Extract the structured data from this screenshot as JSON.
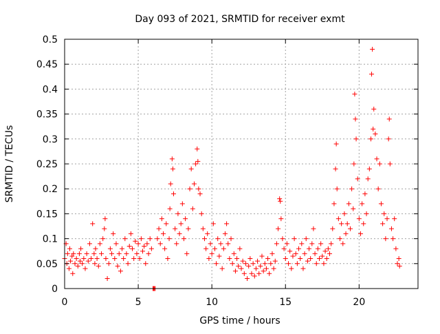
{
  "chart_data": {
    "type": "scatter",
    "title": "Day 093 of 2021, SRMTID for receiver exmt",
    "xlabel": "GPS time / hours",
    "ylabel": "SRMTID / TECUs",
    "xlim": [
      0,
      24
    ],
    "ylim": [
      0,
      0.5
    ],
    "x_ticks": [
      0,
      5,
      10,
      15,
      20
    ],
    "y_ticks": [
      0,
      0.05,
      0.1,
      0.15,
      0.2,
      0.25,
      0.3,
      0.35,
      0.4,
      0.45,
      0.5
    ],
    "x_tick_labels": [
      "0",
      "5",
      "10",
      "15",
      "20"
    ],
    "y_tick_labels": [
      "0",
      "0.05",
      "0.1",
      "0.15",
      "0.2",
      "0.25",
      "0.3",
      "0.35",
      "0.4",
      "0.45",
      "0.5"
    ],
    "grid": true,
    "marker": "+",
    "colors": {
      "series": "#ff0000",
      "axis": "#000000",
      "grid": "#a0a0a0"
    },
    "series": [
      {
        "name": "SRMTID",
        "points": [
          [
            0.0,
            0.06
          ],
          [
            0.1,
            0.09
          ],
          [
            0.15,
            0.05
          ],
          [
            0.2,
            0.07
          ],
          [
            0.3,
            0.04
          ],
          [
            0.35,
            0.08
          ],
          [
            0.4,
            0.055
          ],
          [
            0.5,
            0.065
          ],
          [
            0.55,
            0.03
          ],
          [
            0.6,
            0.07
          ],
          [
            0.7,
            0.05
          ],
          [
            0.8,
            0.06
          ],
          [
            0.9,
            0.045
          ],
          [
            1.0,
            0.07
          ],
          [
            1.05,
            0.055
          ],
          [
            1.1,
            0.08
          ],
          [
            1.2,
            0.05
          ],
          [
            1.3,
            0.06
          ],
          [
            1.4,
            0.04
          ],
          [
            1.5,
            0.07
          ],
          [
            1.6,
            0.055
          ],
          [
            1.7,
            0.09
          ],
          [
            1.8,
            0.06
          ],
          [
            1.9,
            0.13
          ],
          [
            2.0,
            0.07
          ],
          [
            2.05,
            0.05
          ],
          [
            2.1,
            0.08
          ],
          [
            2.2,
            0.06
          ],
          [
            2.3,
            0.045
          ],
          [
            2.4,
            0.09
          ],
          [
            2.5,
            0.07
          ],
          [
            2.6,
            0.1
          ],
          [
            2.7,
            0.12
          ],
          [
            2.75,
            0.14
          ],
          [
            2.8,
            0.06
          ],
          [
            2.9,
            0.02
          ],
          [
            3.0,
            0.05
          ],
          [
            3.1,
            0.08
          ],
          [
            3.2,
            0.07
          ],
          [
            3.3,
            0.11
          ],
          [
            3.4,
            0.06
          ],
          [
            3.5,
            0.09
          ],
          [
            3.6,
            0.045
          ],
          [
            3.7,
            0.07
          ],
          [
            3.8,
            0.035
          ],
          [
            3.9,
            0.08
          ],
          [
            4.0,
            0.06
          ],
          [
            4.1,
            0.1
          ],
          [
            4.2,
            0.07
          ],
          [
            4.3,
            0.05
          ],
          [
            4.4,
            0.085
          ],
          [
            4.5,
            0.11
          ],
          [
            4.6,
            0.08
          ],
          [
            4.7,
            0.06
          ],
          [
            4.8,
            0.095
          ],
          [
            4.9,
            0.07
          ],
          [
            5.0,
            0.09
          ],
          [
            5.1,
            0.06
          ],
          [
            5.2,
            0.1
          ],
          [
            5.3,
            0.075
          ],
          [
            5.4,
            0.085
          ],
          [
            5.5,
            0.05
          ],
          [
            5.6,
            0.09
          ],
          [
            5.7,
            0.07
          ],
          [
            5.8,
            0.1
          ],
          [
            5.9,
            0.08
          ],
          [
            6.0,
            0.0
          ],
          [
            6.05,
            0.0
          ],
          [
            6.1,
            0.0
          ],
          [
            6.15,
            0.0
          ],
          [
            6.3,
            0.1
          ],
          [
            6.4,
            0.12
          ],
          [
            6.5,
            0.09
          ],
          [
            6.6,
            0.14
          ],
          [
            6.7,
            0.11
          ],
          [
            6.8,
            0.08
          ],
          [
            6.9,
            0.13
          ],
          [
            7.0,
            0.06
          ],
          [
            7.1,
            0.1
          ],
          [
            7.15,
            0.16
          ],
          [
            7.2,
            0.21
          ],
          [
            7.3,
            0.26
          ],
          [
            7.35,
            0.24
          ],
          [
            7.4,
            0.19
          ],
          [
            7.5,
            0.12
          ],
          [
            7.6,
            0.09
          ],
          [
            7.7,
            0.15
          ],
          [
            7.8,
            0.11
          ],
          [
            7.9,
            0.13
          ],
          [
            8.0,
            0.17
          ],
          [
            8.1,
            0.1
          ],
          [
            8.2,
            0.14
          ],
          [
            8.3,
            0.07
          ],
          [
            8.4,
            0.12
          ],
          [
            8.5,
            0.2
          ],
          [
            8.6,
            0.24
          ],
          [
            8.7,
            0.16
          ],
          [
            8.8,
            0.21
          ],
          [
            8.9,
            0.25
          ],
          [
            9.0,
            0.28
          ],
          [
            9.05,
            0.255
          ],
          [
            9.1,
            0.2
          ],
          [
            9.2,
            0.19
          ],
          [
            9.3,
            0.15
          ],
          [
            9.4,
            0.12
          ],
          [
            9.5,
            0.1
          ],
          [
            9.6,
            0.08
          ],
          [
            9.7,
            0.11
          ],
          [
            9.8,
            0.06
          ],
          [
            9.9,
            0.09
          ],
          [
            10.0,
            0.07
          ],
          [
            10.1,
            0.13
          ],
          [
            10.2,
            0.08
          ],
          [
            10.3,
            0.05
          ],
          [
            10.4,
            0.1
          ],
          [
            10.5,
            0.065
          ],
          [
            10.6,
            0.09
          ],
          [
            10.7,
            0.04
          ],
          [
            10.8,
            0.08
          ],
          [
            10.9,
            0.11
          ],
          [
            11.0,
            0.13
          ],
          [
            11.1,
            0.09
          ],
          [
            11.2,
            0.06
          ],
          [
            11.3,
            0.1
          ],
          [
            11.4,
            0.05
          ],
          [
            11.5,
            0.07
          ],
          [
            11.6,
            0.035
          ],
          [
            11.7,
            0.06
          ],
          [
            11.8,
            0.045
          ],
          [
            11.9,
            0.08
          ],
          [
            12.0,
            0.04
          ],
          [
            12.1,
            0.055
          ],
          [
            12.2,
            0.03
          ],
          [
            12.3,
            0.05
          ],
          [
            12.4,
            0.02
          ],
          [
            12.5,
            0.045
          ],
          [
            12.6,
            0.06
          ],
          [
            12.7,
            0.03
          ],
          [
            12.8,
            0.05
          ],
          [
            12.9,
            0.025
          ],
          [
            13.0,
            0.04
          ],
          [
            13.1,
            0.055
          ],
          [
            13.2,
            0.03
          ],
          [
            13.3,
            0.045
          ],
          [
            13.4,
            0.065
          ],
          [
            13.5,
            0.035
          ],
          [
            13.6,
            0.05
          ],
          [
            13.7,
            0.04
          ],
          [
            13.8,
            0.06
          ],
          [
            13.9,
            0.03
          ],
          [
            14.0,
            0.05
          ],
          [
            14.1,
            0.07
          ],
          [
            14.2,
            0.04
          ],
          [
            14.3,
            0.055
          ],
          [
            14.4,
            0.09
          ],
          [
            14.5,
            0.12
          ],
          [
            14.6,
            0.18
          ],
          [
            14.65,
            0.175
          ],
          [
            14.7,
            0.14
          ],
          [
            14.8,
            0.1
          ],
          [
            14.9,
            0.08
          ],
          [
            15.0,
            0.06
          ],
          [
            15.1,
            0.09
          ],
          [
            15.2,
            0.05
          ],
          [
            15.3,
            0.075
          ],
          [
            15.4,
            0.04
          ],
          [
            15.5,
            0.065
          ],
          [
            15.6,
            0.1
          ],
          [
            15.7,
            0.07
          ],
          [
            15.8,
            0.05
          ],
          [
            15.9,
            0.08
          ],
          [
            16.0,
            0.06
          ],
          [
            16.1,
            0.09
          ],
          [
            16.2,
            0.04
          ],
          [
            16.3,
            0.07
          ],
          [
            16.4,
            0.1
          ],
          [
            16.5,
            0.055
          ],
          [
            16.6,
            0.08
          ],
          [
            16.7,
            0.06
          ],
          [
            16.8,
            0.09
          ],
          [
            16.9,
            0.12
          ],
          [
            17.0,
            0.07
          ],
          [
            17.1,
            0.05
          ],
          [
            17.2,
            0.08
          ],
          [
            17.3,
            0.06
          ],
          [
            17.4,
            0.09
          ],
          [
            17.5,
            0.065
          ],
          [
            17.6,
            0.05
          ],
          [
            17.7,
            0.075
          ],
          [
            17.8,
            0.06
          ],
          [
            17.9,
            0.08
          ],
          [
            18.0,
            0.07
          ],
          [
            18.1,
            0.09
          ],
          [
            18.2,
            0.12
          ],
          [
            18.3,
            0.17
          ],
          [
            18.4,
            0.24
          ],
          [
            18.45,
            0.29
          ],
          [
            18.5,
            0.2
          ],
          [
            18.6,
            0.14
          ],
          [
            18.7,
            0.1
          ],
          [
            18.8,
            0.13
          ],
          [
            18.9,
            0.09
          ],
          [
            19.0,
            0.15
          ],
          [
            19.1,
            0.11
          ],
          [
            19.2,
            0.13
          ],
          [
            19.3,
            0.17
          ],
          [
            19.4,
            0.12
          ],
          [
            19.5,
            0.2
          ],
          [
            19.6,
            0.16
          ],
          [
            19.65,
            0.25
          ],
          [
            19.7,
            0.39
          ],
          [
            19.75,
            0.34
          ],
          [
            19.8,
            0.3
          ],
          [
            19.9,
            0.22
          ],
          [
            20.0,
            0.14
          ],
          [
            20.1,
            0.11
          ],
          [
            20.2,
            0.17
          ],
          [
            20.3,
            0.13
          ],
          [
            20.4,
            0.19
          ],
          [
            20.5,
            0.15
          ],
          [
            20.6,
            0.22
          ],
          [
            20.7,
            0.24
          ],
          [
            20.8,
            0.3
          ],
          [
            20.85,
            0.43
          ],
          [
            20.9,
            0.48
          ],
          [
            20.95,
            0.32
          ],
          [
            21.0,
            0.36
          ],
          [
            21.1,
            0.31
          ],
          [
            21.2,
            0.26
          ],
          [
            21.3,
            0.2
          ],
          [
            21.4,
            0.25
          ],
          [
            21.5,
            0.17
          ],
          [
            21.6,
            0.13
          ],
          [
            21.7,
            0.15
          ],
          [
            21.8,
            0.1
          ],
          [
            21.9,
            0.14
          ],
          [
            22.0,
            0.3
          ],
          [
            22.05,
            0.34
          ],
          [
            22.1,
            0.25
          ],
          [
            22.2,
            0.12
          ],
          [
            22.3,
            0.1
          ],
          [
            22.4,
            0.14
          ],
          [
            22.5,
            0.08
          ],
          [
            22.6,
            0.05
          ],
          [
            22.7,
            0.06
          ],
          [
            22.75,
            0.045
          ]
        ]
      }
    ]
  }
}
